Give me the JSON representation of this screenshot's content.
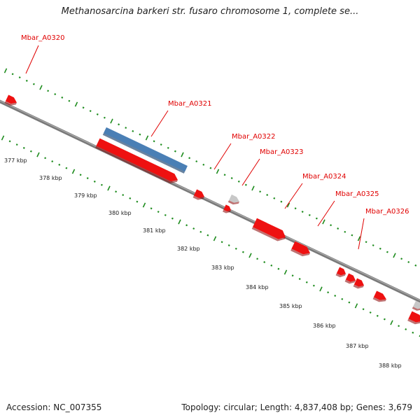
{
  "header": {
    "title": "Methanosarcina barkeri str. fusaro chromosome 1, complete se..."
  },
  "footer": {
    "accession": "Accession: NC_007355",
    "summary": "Topology: circular; Length: 4,837,408 bp; Genes: 3,679"
  },
  "colors": {
    "backbone": "#7a7a7a",
    "tick": "#1e8c1e",
    "gene_label": "#e00000",
    "gene_forward": "#ee1111",
    "gene_highlight": "#4a7fb5",
    "gene_other": "#c8c8c8"
  },
  "genes": [
    {
      "name": "Mbar_A0320"
    },
    {
      "name": "Mbar_A0321"
    },
    {
      "name": "Mbar_A0322"
    },
    {
      "name": "Mbar_A0323"
    },
    {
      "name": "Mbar_A0324"
    },
    {
      "name": "Mbar_A0325"
    },
    {
      "name": "Mbar_A0326"
    }
  ],
  "kbp_labels": [
    "377 kbp",
    "378 kbp",
    "379 kbp",
    "380 kbp",
    "381 kbp",
    "382 kbp",
    "383 kbp",
    "384 kbp",
    "385 kbp",
    "386 kbp",
    "387 kbp",
    "388 kbp"
  ]
}
